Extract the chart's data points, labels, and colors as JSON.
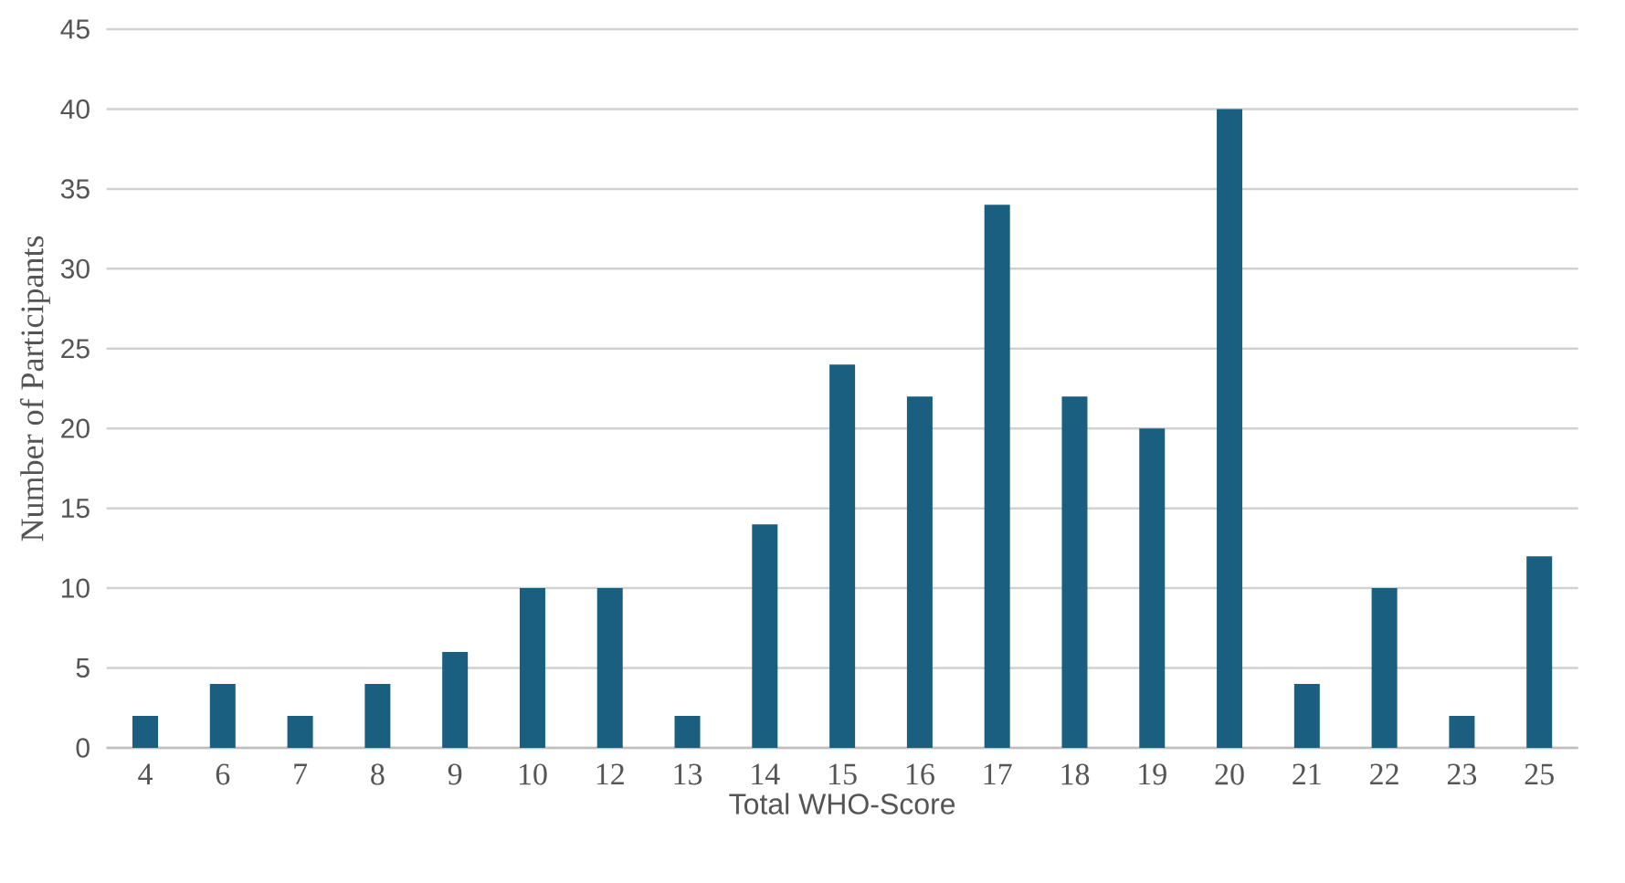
{
  "chart_data": {
    "type": "bar",
    "xlabel": "Total WHO-Score",
    "ylabel": "Number of Participants",
    "categories": [
      "4",
      "6",
      "7",
      "8",
      "9",
      "10",
      "12",
      "13",
      "14",
      "15",
      "16",
      "17",
      "18",
      "19",
      "20",
      "21",
      "22",
      "23",
      "25"
    ],
    "values": [
      2,
      4,
      2,
      4,
      6,
      10,
      10,
      2,
      14,
      24,
      22,
      34,
      22,
      20,
      40,
      4,
      10,
      2,
      12
    ],
    "color": "#1a5e80",
    "ylim": [
      0,
      45
    ],
    "yticks": [
      0,
      5,
      10,
      15,
      20,
      25,
      30,
      35,
      40,
      45
    ],
    "grid": "y"
  }
}
